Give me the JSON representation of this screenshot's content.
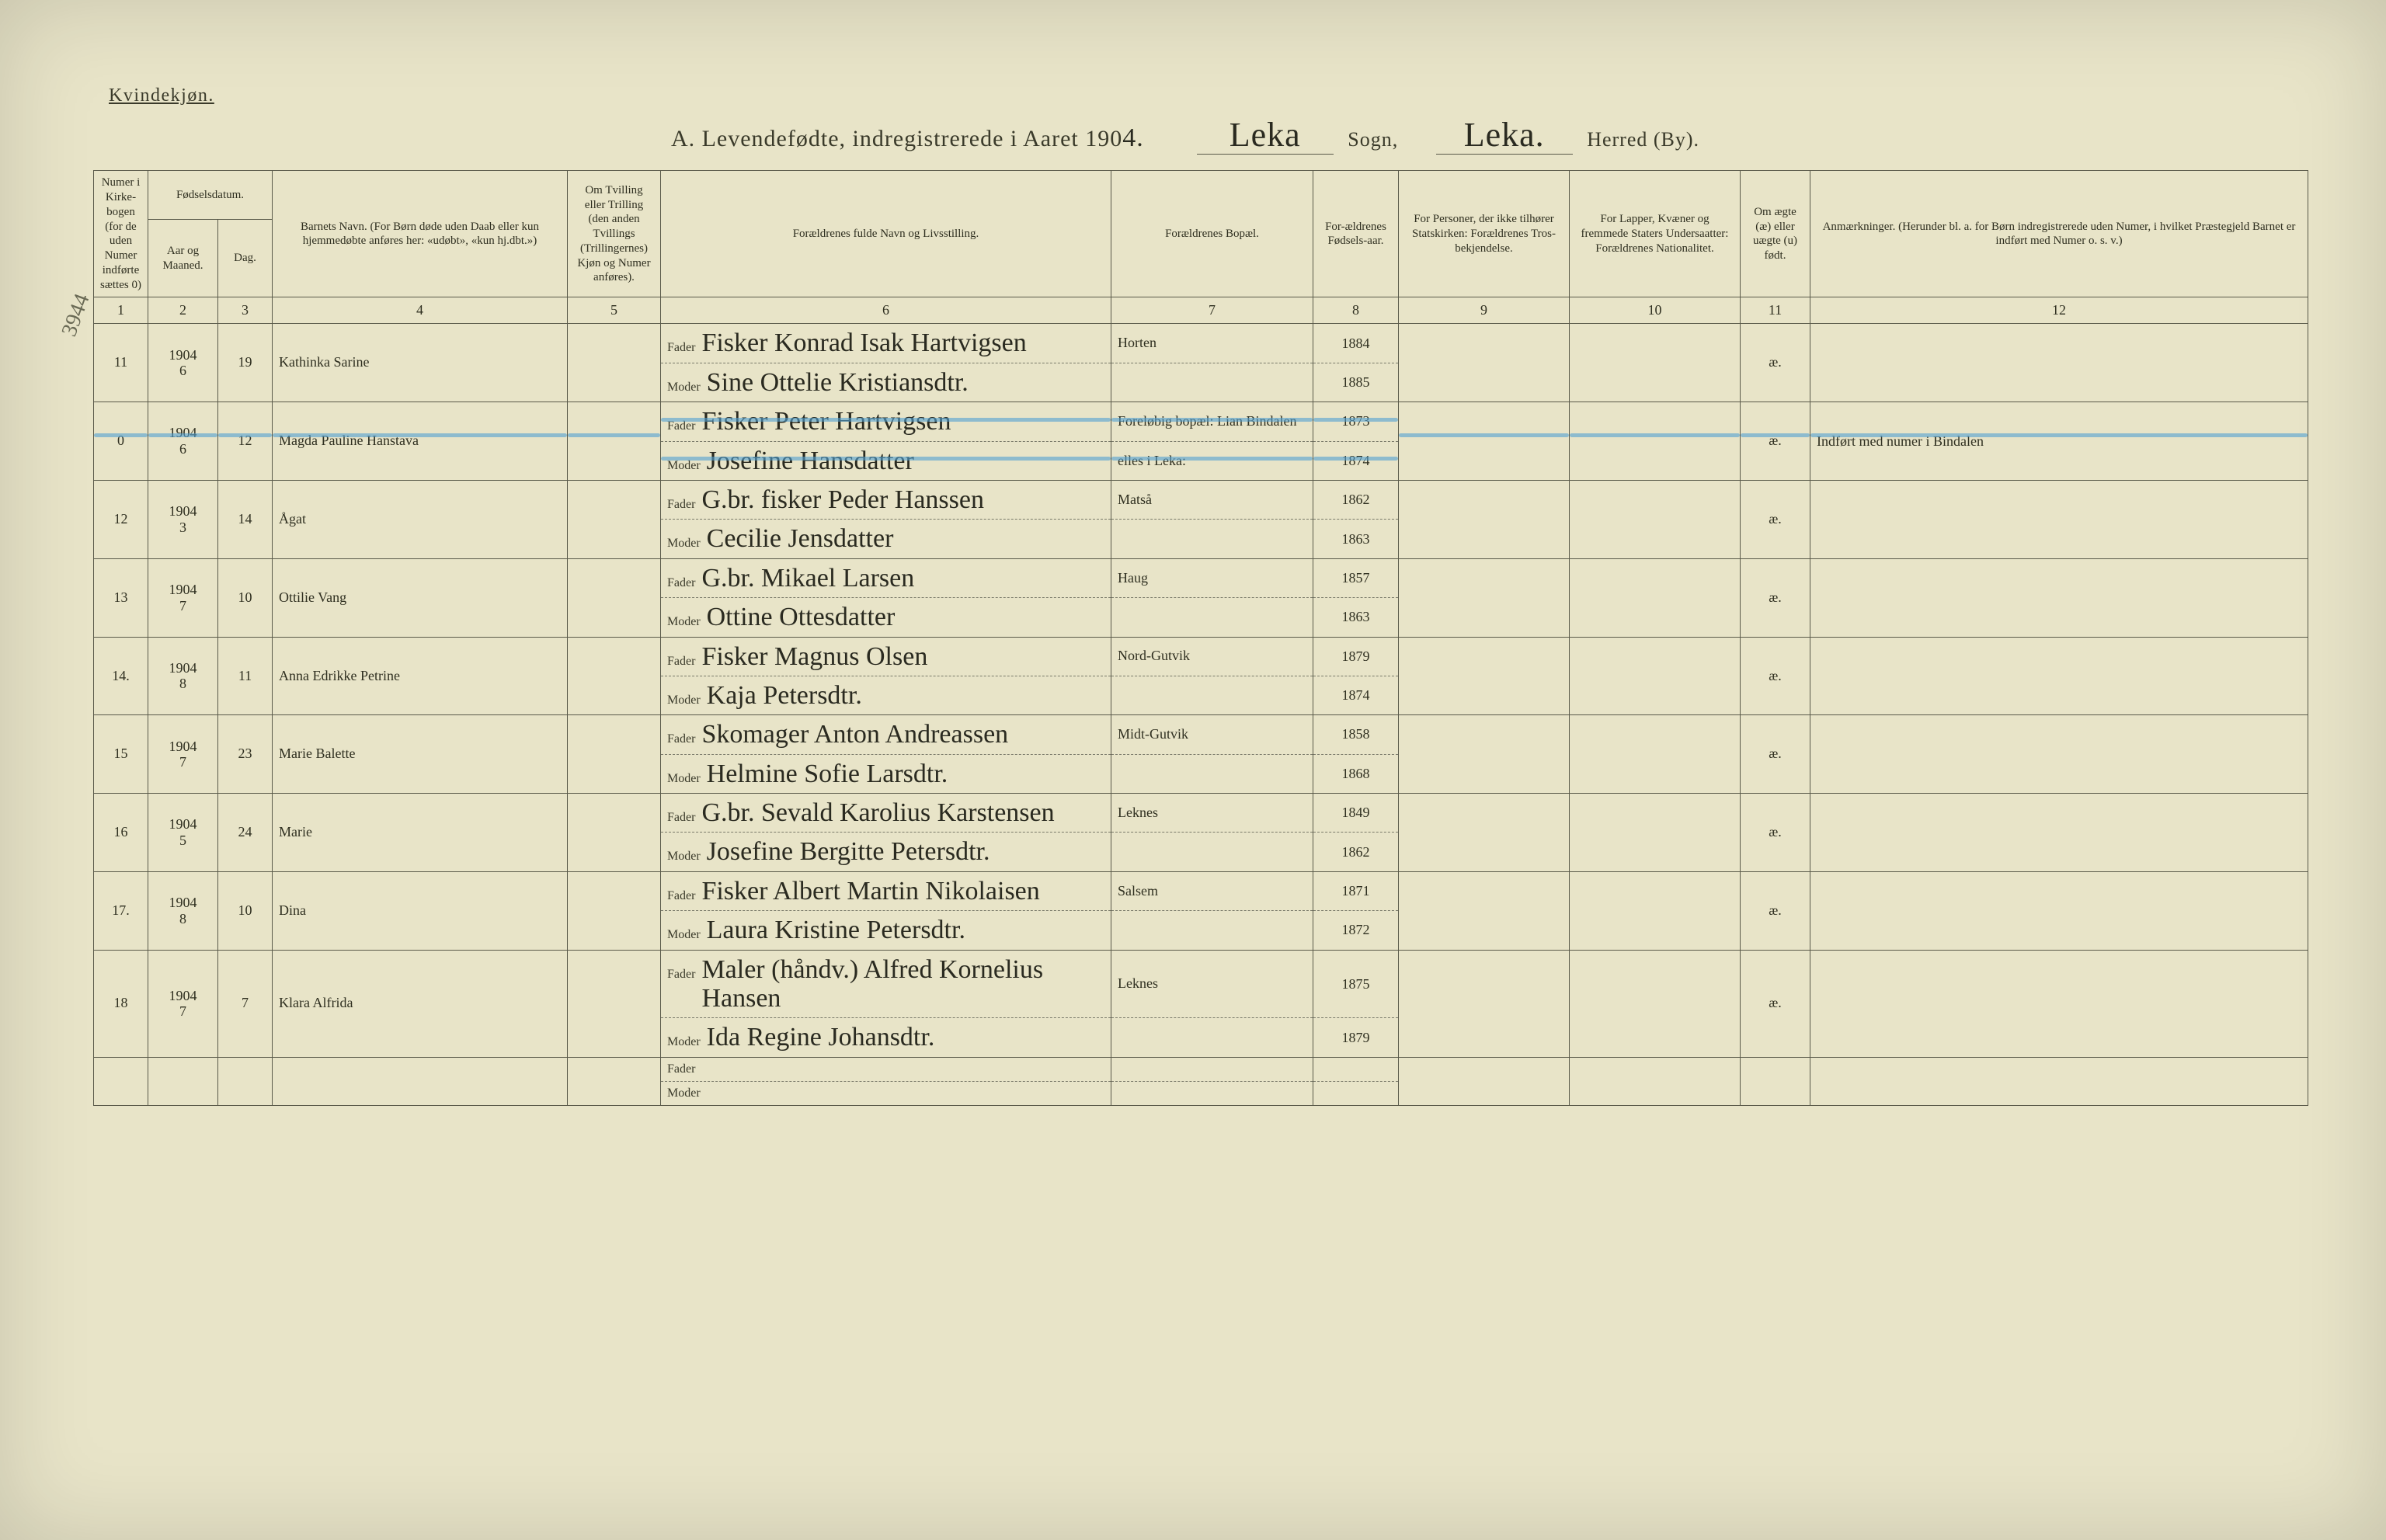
{
  "doc": {
    "gender_heading": "Kvindekjøn.",
    "title_prefix": "A.  Levendefødte, indregistrerede i Aaret 190",
    "title_year_suffix": "4.",
    "sogn_value": "Leka",
    "sogn_label": "Sogn,",
    "herred_value": "Leka.",
    "herred_label": "Herred (By).",
    "margin_note": "3944",
    "background_color": "#e8e4c8",
    "rule_color": "#5a5a4a",
    "bluepencil_color": "#50a0d2",
    "purple_ink": "#7a4aa8"
  },
  "columns": {
    "c1": "Numer i Kirke-bogen (for de uden Numer indførte sættes 0)",
    "c2_group": "Fødselsdatum.",
    "c2a": "Aar og Maaned.",
    "c2b": "Dag.",
    "c4": "Barnets Navn.\n(For Børn døde uden Daab eller kun hjemmedøbte anføres her: «udøbt», «kun hj.dbt.»)",
    "c5": "Om Tvilling eller Trilling (den anden Tvillings (Trillingernes) Kjøn og Numer anføres).",
    "c6": "Forældrenes fulde Navn og Livsstilling.",
    "c7": "Forældrenes Bopæl.",
    "c8": "For-ældrenes Fødsels-aar.",
    "c9": "For Personer, der ikke tilhører Statskirken: Forældrenes Tros-bekjendelse.",
    "c10": "For Lapper, Kvæner og fremmede Staters Undersaatter: Forældrenes Nationalitet.",
    "c11": "Om ægte (æ) eller uægte (u) født.",
    "c12": "Anmærkninger.\n(Herunder bl. a. for Børn indregistrerede uden Numer, i hvilket Præstegjeld Barnet er indført med Numer o. s. v.)",
    "fader_label": "Fader",
    "moder_label": "Moder",
    "colnums": [
      "1",
      "2",
      "3",
      "4",
      "5",
      "6",
      "7",
      "8",
      "9",
      "10",
      "11",
      "12"
    ]
  },
  "rows": [
    {
      "num": "11",
      "year": "1904",
      "month": "6",
      "day": "19",
      "child": "Kathinka Sarine",
      "fader": "Fisker Konrad Isak Hartvigsen",
      "moder": "Sine Ottelie Kristiansdtr.",
      "bopel_f": "Horten",
      "bopel_m": "",
      "faar": "1884",
      "maar": "1885",
      "col11": "æ.",
      "col12": "",
      "struck": false
    },
    {
      "num": "0",
      "year": "1904",
      "month": "6",
      "day": "12",
      "child": "Magda Pauline Hanstava",
      "fader": "Fisker Peter Hartvigsen",
      "moder": "Josefine Hansdatter",
      "bopel_f": "Foreløbig bopæl: Lian Bindalen",
      "bopel_m": "elles i Leka:",
      "faar": "1873",
      "maar": "1874",
      "col11": "æ.",
      "col12": "Indført med numer i Bindalen",
      "struck": true
    },
    {
      "num": "12",
      "year": "1904",
      "month": "3",
      "day": "14",
      "child": "Ågat",
      "fader": "G.br. fisker Peder Hanssen",
      "moder": "Cecilie Jensdatter",
      "bopel_f": "Matså",
      "bopel_m": "",
      "faar": "1862",
      "maar": "1863",
      "col11": "æ.",
      "col12": "",
      "struck": false
    },
    {
      "num": "13",
      "year": "1904",
      "month": "7",
      "day": "10",
      "child": "Ottilie Vang",
      "fader": "G.br. Mikael Larsen",
      "moder": "Ottine Ottesdatter",
      "bopel_f": "Haug",
      "bopel_m": "",
      "faar": "1857",
      "maar": "1863",
      "col11": "æ.",
      "col12": "",
      "struck": false
    },
    {
      "num": "14.",
      "year": "1904",
      "month": "8",
      "day": "11",
      "child": "Anna Edrikke Petrine",
      "fader": "Fisker Magnus Olsen",
      "moder": "Kaja Petersdtr.",
      "bopel_f": "Nord-Gutvik",
      "bopel_m": "",
      "faar": "1879",
      "maar": "1874",
      "col11": "æ.",
      "col12": "",
      "struck": false
    },
    {
      "num": "15",
      "year": "1904",
      "month": "7",
      "day": "23",
      "child": "Marie Balette",
      "fader": "Skomager Anton Andreassen",
      "moder": "Helmine Sofie Larsdtr.",
      "bopel_f": "Midt-Gutvik",
      "bopel_m": "",
      "faar": "1858",
      "maar": "1868",
      "maar_purple": true,
      "faar_purple": true,
      "col11": "æ.",
      "col12": "",
      "struck": false
    },
    {
      "num": "16",
      "year": "1904",
      "month": "5",
      "day": "24",
      "child": "Marie",
      "fader": "G.br. Sevald Karolius Karstensen",
      "moder": "Josefine Bergitte Petersdtr.",
      "bopel_f": "Leknes",
      "bopel_m": "",
      "faar": "1849",
      "maar": "1862",
      "col11": "æ.",
      "col12": "",
      "struck": false
    },
    {
      "num": "17.",
      "year": "1904",
      "month": "8",
      "day": "10",
      "child": "Dina",
      "fader": "Fisker Albert Martin Nikolaisen",
      "moder": "Laura Kristine Petersdtr.",
      "bopel_f": "Salsem",
      "bopel_m": "",
      "faar": "1871",
      "maar": "1872",
      "col11": "æ.",
      "col12": "",
      "struck": false
    },
    {
      "num": "18",
      "year": "1904",
      "month": "7",
      "day": "7",
      "child": "Klara Alfrida",
      "fader": "Maler (håndv.) Alfred Kornelius Hansen",
      "moder": "Ida Regine Johansdtr.",
      "bopel_f": "Leknes",
      "bopel_m": "",
      "faar": "1875",
      "maar": "1879",
      "col11": "æ.",
      "col12": "",
      "struck": false
    },
    {
      "num": "",
      "year": "",
      "month": "",
      "day": "",
      "child": "",
      "fader": "",
      "moder": "",
      "bopel_f": "",
      "bopel_m": "",
      "faar": "",
      "maar": "",
      "col11": "",
      "col12": "",
      "struck": false
    }
  ]
}
